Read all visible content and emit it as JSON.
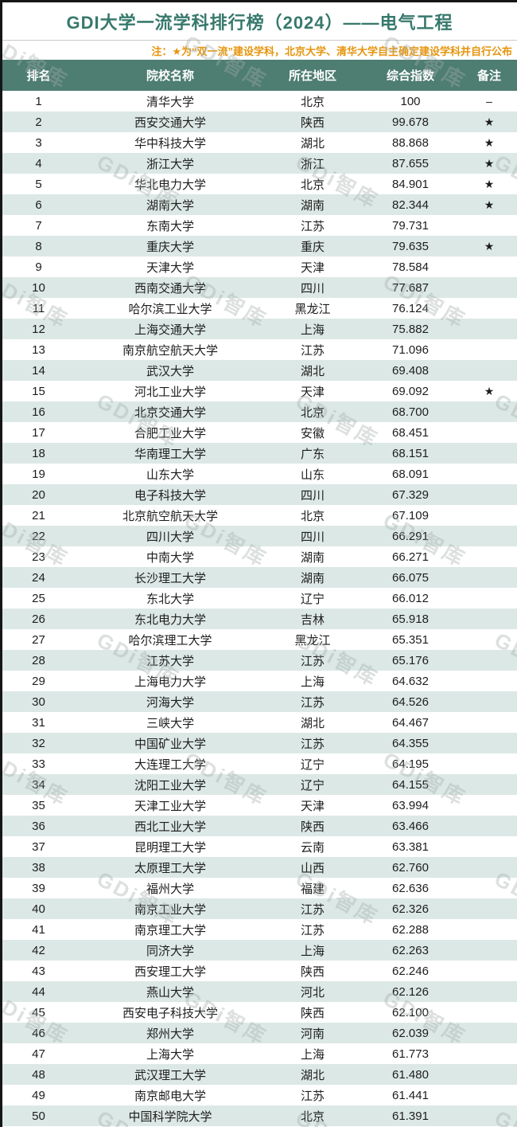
{
  "page": {
    "title": "GDI大学一流学科排行榜（2024）——电气工程",
    "note": "注：★为“双一流”建设学科，北京大学、清华大学自主确定建设学科并自行公布",
    "watermark": "GDi智库"
  },
  "colors": {
    "title_text": "#37796c",
    "note_text": "#e6950e",
    "header_bg": "#4e7d72",
    "stripe_row": "#dce8e5",
    "border_dark": "#161616"
  },
  "table": {
    "columns": [
      "排名",
      "院校名称",
      "所在地区",
      "综合指数",
      "备注"
    ],
    "rows": [
      [
        "1",
        "清华大学",
        "北京",
        "100",
        "–"
      ],
      [
        "2",
        "西安交通大学",
        "陕西",
        "99.678",
        "★"
      ],
      [
        "3",
        "华中科技大学",
        "湖北",
        "88.868",
        "★"
      ],
      [
        "4",
        "浙江大学",
        "浙江",
        "87.655",
        "★"
      ],
      [
        "5",
        "华北电力大学",
        "北京",
        "84.901",
        "★"
      ],
      [
        "6",
        "湖南大学",
        "湖南",
        "82.344",
        "★"
      ],
      [
        "7",
        "东南大学",
        "江苏",
        "79.731",
        ""
      ],
      [
        "8",
        "重庆大学",
        "重庆",
        "79.635",
        "★"
      ],
      [
        "9",
        "天津大学",
        "天津",
        "78.584",
        ""
      ],
      [
        "10",
        "西南交通大学",
        "四川",
        "77.687",
        ""
      ],
      [
        "11",
        "哈尔滨工业大学",
        "黑龙江",
        "76.124",
        ""
      ],
      [
        "12",
        "上海交通大学",
        "上海",
        "75.882",
        ""
      ],
      [
        "13",
        "南京航空航天大学",
        "江苏",
        "71.096",
        ""
      ],
      [
        "14",
        "武汉大学",
        "湖北",
        "69.408",
        ""
      ],
      [
        "15",
        "河北工业大学",
        "天津",
        "69.092",
        "★"
      ],
      [
        "16",
        "北京交通大学",
        "北京",
        "68.700",
        ""
      ],
      [
        "17",
        "合肥工业大学",
        "安徽",
        "68.451",
        ""
      ],
      [
        "18",
        "华南理工大学",
        "广东",
        "68.151",
        ""
      ],
      [
        "19",
        "山东大学",
        "山东",
        "68.091",
        ""
      ],
      [
        "20",
        "电子科技大学",
        "四川",
        "67.329",
        ""
      ],
      [
        "21",
        "北京航空航天大学",
        "北京",
        "67.109",
        ""
      ],
      [
        "22",
        "四川大学",
        "四川",
        "66.291",
        ""
      ],
      [
        "23",
        "中南大学",
        "湖南",
        "66.271",
        ""
      ],
      [
        "24",
        "长沙理工大学",
        "湖南",
        "66.075",
        ""
      ],
      [
        "25",
        "东北大学",
        "辽宁",
        "66.012",
        ""
      ],
      [
        "26",
        "东北电力大学",
        "吉林",
        "65.918",
        ""
      ],
      [
        "27",
        "哈尔滨理工大学",
        "黑龙江",
        "65.351",
        ""
      ],
      [
        "28",
        "江苏大学",
        "江苏",
        "65.176",
        ""
      ],
      [
        "29",
        "上海电力大学",
        "上海",
        "64.632",
        ""
      ],
      [
        "30",
        "河海大学",
        "江苏",
        "64.526",
        ""
      ],
      [
        "31",
        "三峡大学",
        "湖北",
        "64.467",
        ""
      ],
      [
        "32",
        "中国矿业大学",
        "江苏",
        "64.355",
        ""
      ],
      [
        "33",
        "大连理工大学",
        "辽宁",
        "64.195",
        ""
      ],
      [
        "34",
        "沈阳工业大学",
        "辽宁",
        "64.155",
        ""
      ],
      [
        "35",
        "天津工业大学",
        "天津",
        "63.994",
        ""
      ],
      [
        "36",
        "西北工业大学",
        "陕西",
        "63.466",
        ""
      ],
      [
        "37",
        "昆明理工大学",
        "云南",
        "63.381",
        ""
      ],
      [
        "38",
        "太原理工大学",
        "山西",
        "62.760",
        ""
      ],
      [
        "39",
        "福州大学",
        "福建",
        "62.636",
        ""
      ],
      [
        "40",
        "南京工业大学",
        "江苏",
        "62.326",
        ""
      ],
      [
        "41",
        "南京理工大学",
        "江苏",
        "62.288",
        ""
      ],
      [
        "42",
        "同济大学",
        "上海",
        "62.263",
        ""
      ],
      [
        "43",
        "西安理工大学",
        "陕西",
        "62.246",
        ""
      ],
      [
        "44",
        "燕山大学",
        "河北",
        "62.126",
        ""
      ],
      [
        "45",
        "西安电子科技大学",
        "陕西",
        "62.100",
        ""
      ],
      [
        "46",
        "郑州大学",
        "河南",
        "62.039",
        ""
      ],
      [
        "47",
        "上海大学",
        "上海",
        "61.773",
        ""
      ],
      [
        "48",
        "武汉理工大学",
        "湖北",
        "61.480",
        ""
      ],
      [
        "49",
        "南京邮电大学",
        "江苏",
        "61.441",
        ""
      ],
      [
        "50",
        "中国科学院大学",
        "北京",
        "61.391",
        ""
      ]
    ]
  }
}
